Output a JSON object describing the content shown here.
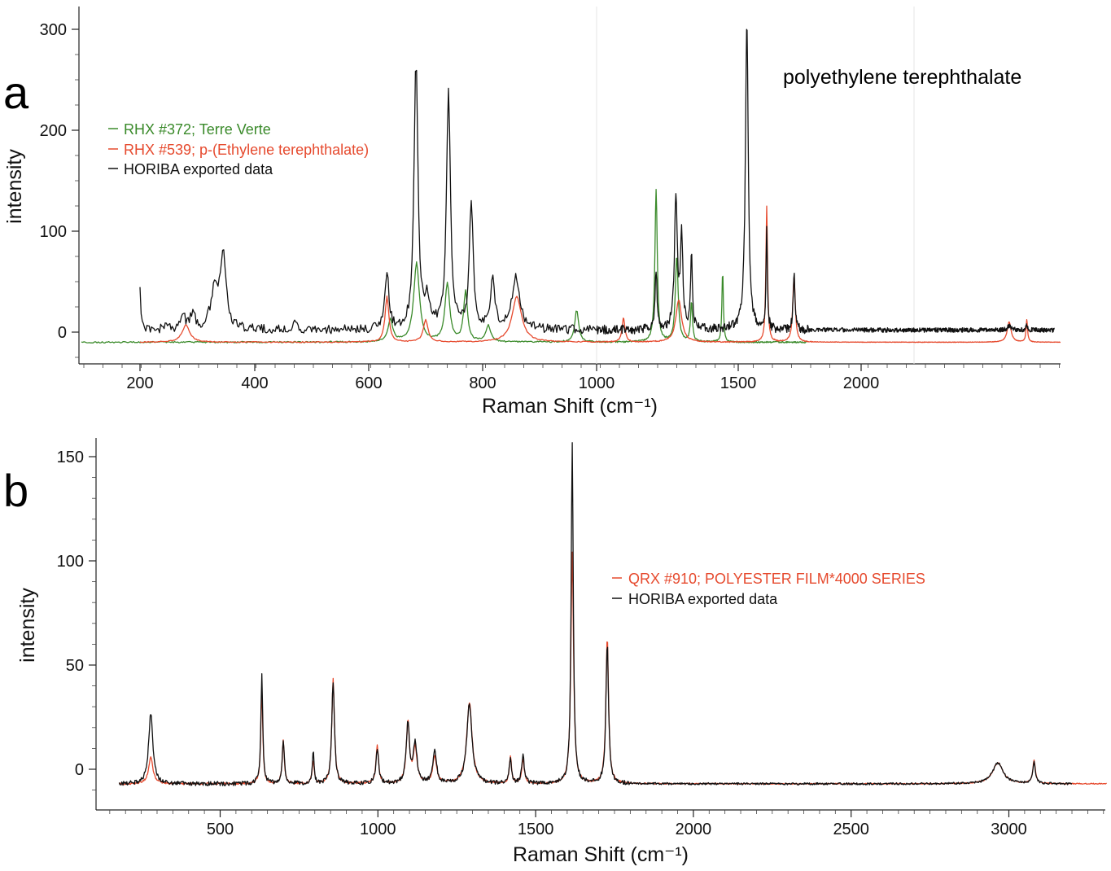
{
  "panels": {
    "a": "a",
    "b": "b"
  },
  "chart_data": [
    {
      "type": "line",
      "xlabel": "Raman Shift (cm⁻¹)",
      "ylabel": "intensity",
      "x_ticks": [
        "200",
        "400",
        "600",
        "800",
        "1000",
        "1500",
        "2000"
      ],
      "y_ticks": [
        0,
        100,
        200,
        300
      ],
      "ylim": [
        -30,
        320
      ],
      "annotation": "polyethylene terephthalate",
      "legend_placement": "upper-left",
      "grid": false,
      "series": [
        {
          "name": "RHX #372; Terre Verte",
          "color": "#3a8a2a",
          "baseline": -10,
          "x_range": [
            110,
            1780
          ],
          "peaks": [
            [
              638,
              12,
              5
            ],
            [
              684,
              68,
              6
            ],
            [
              738,
              48,
              5
            ],
            [
              770,
              40,
              4
            ],
            [
              810,
              6,
              5
            ],
            [
              965,
              22,
              4
            ],
            [
              1210,
              140,
              5
            ],
            [
              1283,
              75,
              6
            ],
            [
              1335,
              30,
              4
            ],
            [
              1445,
              62,
              3
            ]
          ]
        },
        {
          "name": "RHX #539; p-(Ethylene terephthalate)",
          "color": "#e64a2e",
          "baseline": -10,
          "x_range": [
            200,
            3300
          ],
          "peaks": [
            [
              280,
              7,
              8
            ],
            [
              632,
              35,
              4
            ],
            [
              700,
              12,
              5
            ],
            [
              860,
              35,
              10
            ],
            [
              1095,
              14,
              6
            ],
            [
              1290,
              32,
              12
            ],
            [
              1616,
              125,
              4
            ],
            [
              1727,
              55,
              6
            ],
            [
              2965,
              10,
              15
            ],
            [
              3080,
              12,
              6
            ]
          ]
        },
        {
          "name": "HORIBA exported data",
          "color": "#111111",
          "baseline": 2,
          "x_range": [
            200,
            3260
          ],
          "peaks": [
            [
              200,
              42,
              2
            ],
            [
              245,
              10,
              3
            ],
            [
              275,
              20,
              4
            ],
            [
              292,
              20,
              4
            ],
            [
              330,
              40,
              8
            ],
            [
              345,
              72,
              6
            ],
            [
              470,
              12,
              3
            ],
            [
              632,
              60,
              4
            ],
            [
              683,
              272,
              4
            ],
            [
              703,
              30,
              6
            ],
            [
              740,
              240,
              4
            ],
            [
              780,
              128,
              4
            ],
            [
              818,
              55,
              4
            ],
            [
              858,
              55,
              8
            ],
            [
              1210,
              60,
              4
            ],
            [
              1280,
              132,
              6
            ],
            [
              1300,
              95,
              5
            ],
            [
              1335,
              75,
              4
            ],
            [
              1535,
              308,
              7
            ],
            [
              1616,
              105,
              3
            ],
            [
              1727,
              60,
              4
            ],
            [
              2965,
              6,
              15
            ],
            [
              3080,
              8,
              5
            ]
          ]
        }
      ]
    },
    {
      "type": "line",
      "xlabel": "Raman Shift (cm⁻¹)",
      "ylabel": "intensity",
      "x_ticks": [
        500,
        1000,
        1500,
        2000,
        2500,
        3000
      ],
      "y_ticks": [
        0,
        50,
        100,
        150
      ],
      "xlim": [
        125,
        3310
      ],
      "ylim": [
        -18,
        155
      ],
      "legend_placement": "right",
      "grid": false,
      "series": [
        {
          "name": "QRX #910; POLYESTER FILM*4000 SERIES",
          "color": "#e64a2e",
          "baseline": -7,
          "x_range": [
            180,
            3310
          ],
          "peaks": [
            [
              280,
              6,
              8
            ],
            [
              632,
              40,
              3.5
            ],
            [
              700,
              14,
              4
            ],
            [
              795,
              4,
              4
            ],
            [
              858,
              43,
              5
            ],
            [
              998,
              11,
              5
            ],
            [
              1095,
              22,
              6
            ],
            [
              1118,
              10,
              7
            ],
            [
              1180,
              6,
              7
            ],
            [
              1290,
              32,
              10
            ],
            [
              1420,
              6,
              4
            ],
            [
              1460,
              4,
              5
            ],
            [
              1616,
              104,
              5
            ],
            [
              1727,
              63,
              5
            ],
            [
              2965,
              3,
              20
            ],
            [
              3080,
              4,
              5
            ]
          ]
        },
        {
          "name": "HORIBA exported data",
          "color": "#111111",
          "baseline": -7,
          "x_range": [
            180,
            3200
          ],
          "peaks": [
            [
              280,
              27,
              8
            ],
            [
              632,
              46,
              3.5
            ],
            [
              700,
              14,
              4
            ],
            [
              795,
              9,
              3
            ],
            [
              858,
              42,
              5
            ],
            [
              998,
              10,
              5
            ],
            [
              1095,
              22,
              6
            ],
            [
              1118,
              12,
              7
            ],
            [
              1180,
              8,
              7
            ],
            [
              1290,
              31,
              10
            ],
            [
              1420,
              6,
              4
            ],
            [
              1460,
              6,
              5
            ],
            [
              1616,
              157,
              4
            ],
            [
              1727,
              60,
              5
            ],
            [
              2965,
              3,
              20
            ],
            [
              3080,
              3,
              5
            ]
          ]
        }
      ]
    }
  ]
}
